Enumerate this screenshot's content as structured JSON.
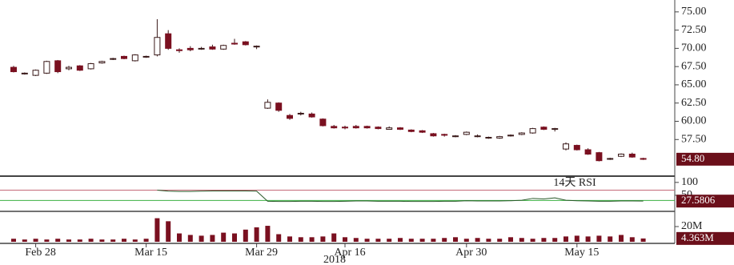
{
  "chart_data": [
    {
      "type": "candlestick",
      "categories": [
        null,
        null,
        "Feb 28",
        null,
        null,
        null,
        null,
        null,
        null,
        null,
        null,
        null,
        "Mar 15",
        null,
        null,
        null,
        null,
        null,
        null,
        null,
        null,
        null,
        "Mar 29",
        null,
        null,
        null,
        null,
        null,
        null,
        null,
        "Apr 16",
        null,
        null,
        null,
        null,
        null,
        null,
        null,
        null,
        null,
        null,
        "Apr 30",
        null,
        null,
        null,
        null,
        null,
        null,
        null,
        null,
        null,
        "May 15",
        null,
        null,
        null,
        null,
        null,
        null
      ],
      "year_label": "2018",
      "up_color": "#ffffff",
      "down_color": "#7a1020",
      "line_color": "#3a1a1a",
      "open": [
        67.4,
        66.6,
        66.3,
        66.6,
        68.3,
        67.2,
        67.6,
        67.2,
        68.0,
        68.5,
        68.9,
        68.3,
        68.8,
        69.1,
        72.0,
        69.8,
        70.0,
        69.9,
        70.2,
        69.9,
        70.7,
        70.9,
        70.2,
        61.8,
        62.5,
        60.8,
        61.0,
        61.0,
        60.3,
        59.3,
        59.2,
        59.3,
        59.3,
        59.2,
        58.9,
        59.1,
        58.8,
        58.7,
        58.3,
        58.2,
        57.9,
        58.2,
        58.0,
        57.8,
        57.7,
        58.0,
        58.2,
        58.4,
        59.2,
        59.0,
        56.2,
        56.7,
        56.1,
        55.7,
        54.8,
        55.2,
        55.5,
        54.9
      ],
      "high": [
        67.6,
        66.7,
        67.1,
        68.3,
        68.4,
        67.6,
        67.7,
        68.0,
        68.3,
        68.7,
        69.0,
        69.2,
        69.0,
        74.0,
        72.5,
        70.0,
        70.3,
        70.2,
        70.5,
        70.5,
        71.3,
        71.0,
        70.4,
        63.0,
        62.6,
        61.0,
        61.3,
        61.2,
        60.4,
        59.5,
        59.4,
        59.5,
        59.4,
        59.3,
        59.3,
        59.2,
        58.9,
        58.8,
        58.4,
        58.3,
        58.1,
        58.6,
        58.2,
        57.9,
        58.0,
        58.2,
        58.5,
        59.1,
        59.3,
        59.1,
        57.1,
        56.8,
        56.3,
        55.8,
        55.0,
        55.6,
        55.7,
        55.0
      ],
      "low": [
        66.7,
        66.4,
        66.2,
        66.5,
        66.6,
        67.0,
        66.9,
        67.1,
        67.9,
        68.4,
        68.5,
        68.2,
        68.7,
        68.9,
        69.8,
        69.4,
        69.6,
        69.8,
        69.8,
        69.8,
        70.5,
        70.4,
        69.9,
        61.7,
        61.3,
        60.2,
        60.8,
        60.5,
        59.3,
        59.0,
        58.9,
        59.0,
        59.0,
        58.9,
        58.9,
        58.8,
        58.5,
        58.4,
        57.9,
        57.9,
        57.8,
        58.1,
        57.8,
        57.6,
        57.6,
        57.9,
        58.1,
        58.3,
        58.8,
        58.6,
        56.0,
        56.0,
        55.4,
        54.5,
        54.7,
        55.1,
        55.0,
        54.7
      ],
      "close": [
        66.8,
        66.6,
        67.0,
        68.2,
        66.8,
        67.4,
        67.0,
        67.9,
        68.2,
        68.6,
        68.6,
        69.1,
        68.9,
        71.5,
        70.0,
        69.7,
        69.8,
        70.0,
        69.9,
        70.4,
        70.6,
        70.5,
        70.3,
        62.6,
        61.5,
        60.4,
        61.1,
        60.6,
        59.4,
        59.1,
        59.1,
        59.1,
        59.1,
        59.0,
        59.1,
        58.9,
        58.6,
        58.5,
        58.0,
        58.1,
        58.0,
        58.5,
        58.0,
        57.8,
        57.9,
        58.1,
        58.4,
        59.0,
        58.9,
        59.0,
        56.9,
        56.1,
        55.5,
        54.6,
        54.9,
        55.5,
        55.1,
        54.8
      ],
      "last_label": "54.80",
      "ylim": [
        52.7,
        76.3
      ],
      "yticks": [
        {
          "value": 57.5,
          "label": "57.50"
        },
        {
          "value": 60,
          "label": "60.00"
        },
        {
          "value": 62.5,
          "label": "62.50"
        },
        {
          "value": 65,
          "label": "65.00"
        },
        {
          "value": 67.5,
          "label": "67.50"
        },
        {
          "value": 70,
          "label": "70.00"
        },
        {
          "value": 72.5,
          "label": "72.50"
        },
        {
          "value": 75,
          "label": "75.00"
        }
      ]
    },
    {
      "type": "line",
      "title": "14天 RSI",
      "color": "#2a5a2a",
      "values": [
        null,
        null,
        null,
        null,
        null,
        null,
        null,
        null,
        null,
        null,
        null,
        null,
        null,
        70,
        66,
        65,
        65,
        66,
        67,
        67,
        67,
        67,
        66,
        27,
        26,
        26,
        27,
        27,
        26,
        26,
        27,
        28,
        28,
        27,
        27,
        27,
        26,
        26,
        26,
        27,
        27,
        29,
        28,
        28,
        28,
        29,
        31,
        38,
        36,
        40,
        31,
        29,
        28,
        27,
        27,
        28,
        28,
        27.5806
      ],
      "last_label": "27.5806",
      "ref_lines": [
        {
          "value": 70,
          "color": "#c46a78"
        },
        {
          "value": 30,
          "color": "#3cb043"
        }
      ],
      "ylim": [
        -6,
        115
      ],
      "yticks": [
        100,
        50
      ]
    },
    {
      "type": "bar",
      "color": "#7a1020",
      "values": [
        4,
        3,
        4,
        3,
        4,
        3,
        3,
        4,
        3,
        3,
        4,
        3,
        4,
        31,
        27,
        11,
        9,
        8,
        9,
        12,
        11,
        16,
        19,
        21,
        10,
        7,
        6,
        6,
        7,
        11,
        6,
        5,
        4,
        4,
        4,
        5,
        4,
        4,
        4,
        5,
        6,
        4,
        5,
        4,
        4,
        6,
        5,
        4,
        5,
        5,
        7,
        8,
        7,
        8,
        7,
        9,
        6,
        4.363
      ],
      "last_label": "4.363M",
      "ylim": [
        0,
        37.9
      ],
      "yticks": [
        {
          "value": 20,
          "label": "20M"
        }
      ]
    }
  ]
}
